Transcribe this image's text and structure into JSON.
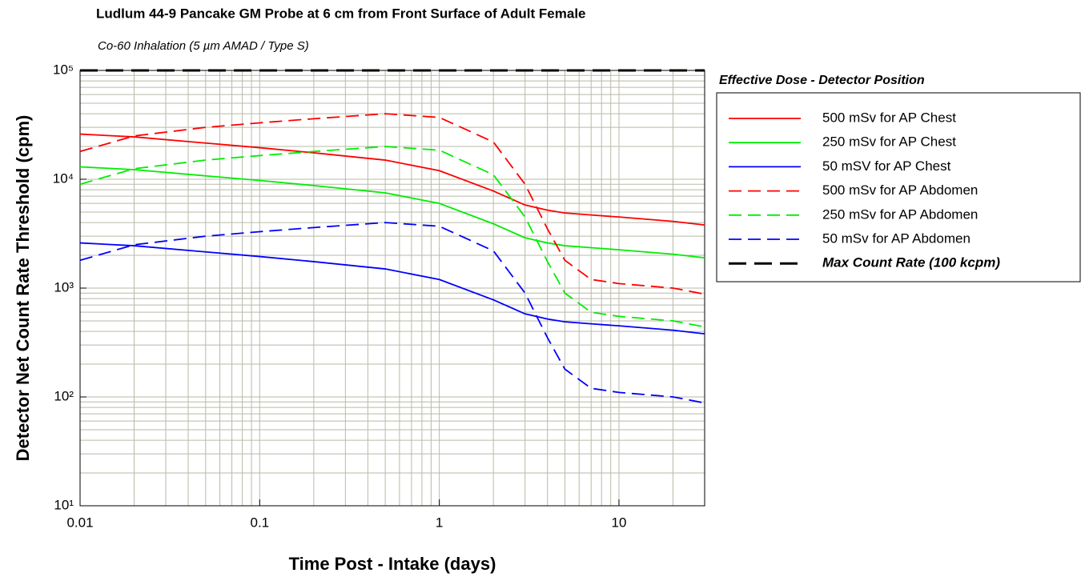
{
  "chart_data": {
    "type": "line",
    "title": "Ludlum 44-9 Pancake GM Probe at 6 cm from Front Surface of Adult Female",
    "subtitle": "Co-60 Inhalation (5 µm AMAD / Type S)",
    "x_label": "Time Post - Intake (days)",
    "y_label": "Detector Net Count Rate Threshold (cpm)",
    "legend_title": "Effective Dose - Detector Position",
    "x_log": true,
    "y_log": true,
    "grid": true,
    "legend": "right",
    "xlim": [
      0.01,
      30
    ],
    "ylim": [
      10,
      100000
    ],
    "xticks": [
      0.01,
      0.1,
      1,
      10
    ],
    "yticks": [
      {
        "value": 10,
        "label": "10¹"
      },
      {
        "value": 100,
        "label": "10²"
      },
      {
        "value": 1000,
        "label": "10³"
      },
      {
        "value": 10000,
        "label": "10⁴"
      },
      {
        "value": 100000,
        "label": "10⁵"
      }
    ],
    "x": [
      0.01,
      0.02,
      0.05,
      0.1,
      0.2,
      0.5,
      1,
      2,
      3,
      4,
      5,
      7,
      10,
      20,
      30
    ],
    "series": [
      {
        "name": "500 mSv for AP Chest",
        "color": "#ff0000",
        "dash": "solid",
        "values": [
          26000,
          24500,
          21500,
          19500,
          17500,
          15000,
          12000,
          7800,
          5800,
          5200,
          4900,
          4700,
          4500,
          4100,
          3800
        ]
      },
      {
        "name": "250 mSv for AP Chest",
        "color": "#00ee00",
        "dash": "solid",
        "values": [
          13000,
          12250,
          10750,
          9750,
          8750,
          7500,
          6000,
          3900,
          2900,
          2600,
          2450,
          2350,
          2250,
          2050,
          1900
        ]
      },
      {
        "name": "50 mSV for AP Chest",
        "color": "#0000ff",
        "dash": "solid",
        "values": [
          2600,
          2450,
          2150,
          1950,
          1750,
          1500,
          1200,
          780,
          580,
          520,
          490,
          470,
          450,
          410,
          380
        ]
      },
      {
        "name": "500 mSv for AP Abdomen",
        "color": "#ff0000",
        "dash": "dashed",
        "values": [
          18000,
          25000,
          30000,
          33000,
          36000,
          40000,
          37000,
          22000,
          9000,
          3500,
          1800,
          1200,
          1100,
          1000,
          880
        ]
      },
      {
        "name": "250 mSv for AP Abdomen",
        "color": "#00ee00",
        "dash": "dashed",
        "values": [
          9000,
          12500,
          15000,
          16500,
          18000,
          20000,
          18500,
          11000,
          4500,
          1750,
          900,
          600,
          550,
          500,
          440
        ]
      },
      {
        "name": "50 mSv for AP Abdomen",
        "color": "#0000ff",
        "dash": "dashed",
        "values": [
          1800,
          2500,
          3000,
          3300,
          3600,
          4000,
          3700,
          2200,
          900,
          350,
          180,
          120,
          110,
          100,
          88
        ]
      },
      {
        "name": "Max Count Rate (100 kcpm)",
        "color": "#000000",
        "dash": "longdash",
        "values": [
          100000,
          100000,
          100000,
          100000,
          100000,
          100000,
          100000,
          100000,
          100000,
          100000,
          100000,
          100000,
          100000,
          100000,
          100000
        ]
      }
    ]
  }
}
